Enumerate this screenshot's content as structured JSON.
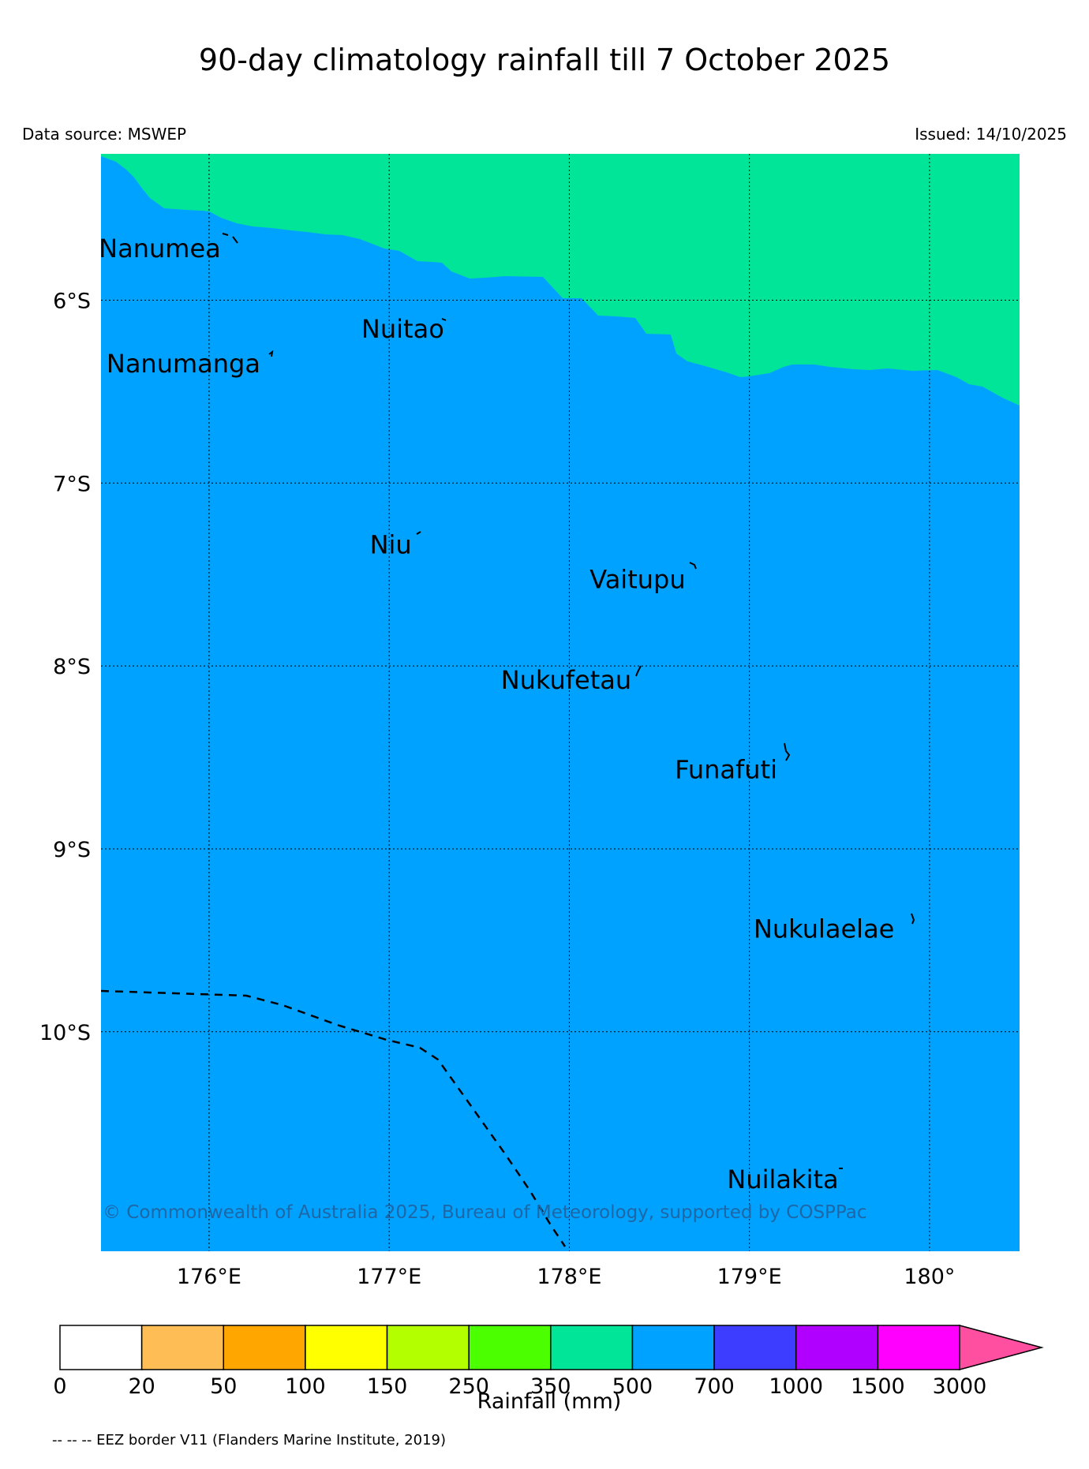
{
  "header": {
    "title": "90-day climatology rainfall till 7 October 2025",
    "data_source": "Data source: MSWEP",
    "issued": "Issued: 14/10/2025"
  },
  "map": {
    "lon_range": [
      175.4,
      180.5
    ],
    "lat_range": [
      -11.2,
      -5.2
    ],
    "lon_ticks": [
      {
        "value": 176,
        "label": "176°E"
      },
      {
        "value": 177,
        "label": "177°E"
      },
      {
        "value": 178,
        "label": "178°E"
      },
      {
        "value": 179,
        "label": "179°E"
      },
      {
        "value": 180,
        "label": "180°"
      }
    ],
    "lat_ticks": [
      {
        "value": -6,
        "label": "6°S"
      },
      {
        "value": -7,
        "label": "7°S"
      },
      {
        "value": -8,
        "label": "8°S"
      },
      {
        "value": -9,
        "label": "9°S"
      },
      {
        "value": -10,
        "label": "10°S"
      }
    ],
    "fill_colors": {
      "north_band": "#00e598",
      "main": "#00a2ff"
    },
    "places": [
      {
        "name": "Nanumea",
        "lon": 176.1,
        "lat": -5.67
      },
      {
        "name": "Nuitao",
        "lon": 177.34,
        "lat": -6.11
      },
      {
        "name": "Nanumanga",
        "lon": 176.32,
        "lat": -6.3
      },
      {
        "name": "Niu",
        "lon": 177.16,
        "lat": -7.29
      },
      {
        "name": "Vaitupu",
        "lon": 178.68,
        "lat": -7.48
      },
      {
        "name": "Nukufetau",
        "lon": 178.38,
        "lat": -8.03
      },
      {
        "name": "Funafuti",
        "lon": 179.19,
        "lat": -8.52
      },
      {
        "name": "Nukulaelae",
        "lon": 179.84,
        "lat": -9.39
      },
      {
        "name": "Nuilakita",
        "lon": 179.53,
        "lat": -10.76
      }
    ],
    "copyright": "© Commonwealth of Australia 2025, Bureau of Meteorology, supported by COSPPac"
  },
  "colorbar": {
    "title": "Rainfall (mm)",
    "boundaries": [
      "0",
      "20",
      "50",
      "100",
      "150",
      "250",
      "350",
      "500",
      "700",
      "1000",
      "1500",
      "3000"
    ],
    "colors": [
      "#ffffff",
      "#ffbe55",
      "#ffa700",
      "#ffff00",
      "#b3ff00",
      "#4cff00",
      "#00e598",
      "#00a2ff",
      "#3d3dff",
      "#b000ff",
      "#ff00ff"
    ],
    "extend_color": "#ff4fa0"
  },
  "footnote": "-- -- -- EEZ border V11 (Flanders Marine Institute, 2019)"
}
